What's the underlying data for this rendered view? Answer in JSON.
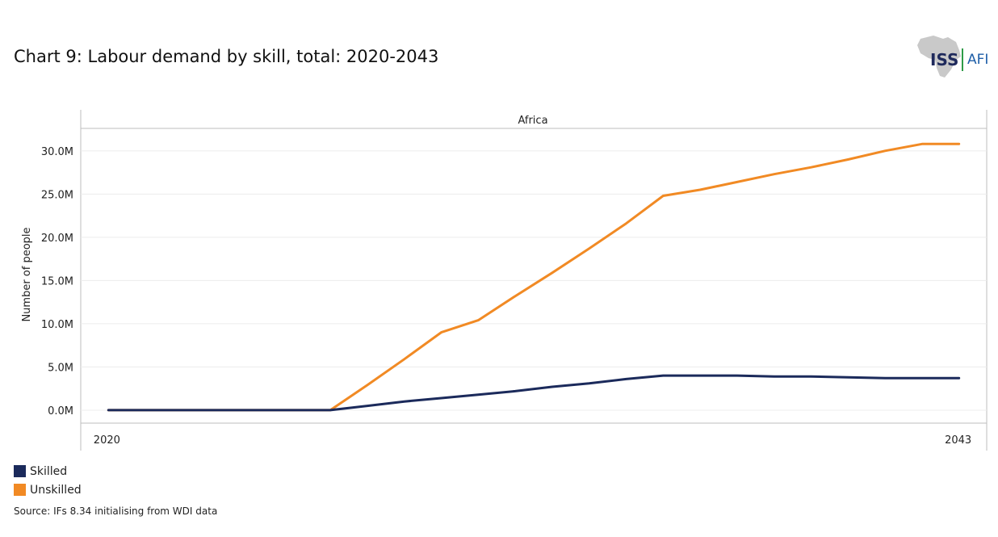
{
  "header": {
    "title": "Chart 9: Labour demand by skill, total: 2020-2043",
    "logo_iss": "ISS",
    "logo_afi": "AFI"
  },
  "chart_data": {
    "type": "line",
    "panel_title": "Africa",
    "ylabel": "Number of people",
    "xlabel": "",
    "x": [
      2020,
      2021,
      2022,
      2023,
      2024,
      2025,
      2026,
      2027,
      2028,
      2029,
      2030,
      2031,
      2032,
      2033,
      2034,
      2035,
      2036,
      2037,
      2038,
      2039,
      2040,
      2041,
      2042,
      2043
    ],
    "x_tick_labels": [
      "2020",
      "2043"
    ],
    "y_ticks": [
      0,
      5,
      10,
      15,
      20,
      25,
      30
    ],
    "y_tick_labels": [
      "0.0M",
      "5.0M",
      "10.0M",
      "15.0M",
      "20.0M",
      "25.0M",
      "30.0M"
    ],
    "ylim": [
      -1.5,
      32.6
    ],
    "xlim": [
      2019.25,
      2043.75
    ],
    "series": [
      {
        "name": "Skilled",
        "color": "#1b2a5b",
        "values": [
          0,
          0,
          0,
          0,
          0,
          0,
          0,
          0.5,
          1.0,
          1.4,
          1.8,
          2.2,
          2.7,
          3.1,
          3.6,
          4.0,
          4.0,
          4.0,
          3.9,
          3.9,
          3.8,
          3.7,
          3.7,
          3.7
        ]
      },
      {
        "name": "Unskilled",
        "color": "#f18a24",
        "values": [
          0,
          0,
          0,
          0,
          0,
          0,
          0,
          2.9,
          5.9,
          9.0,
          10.4,
          13.2,
          15.9,
          18.7,
          21.6,
          24.8,
          25.5,
          26.4,
          27.3,
          28.1,
          29.0,
          30.0,
          30.8,
          30.8
        ]
      }
    ]
  },
  "legend": {
    "items": [
      {
        "label": "Skilled",
        "color": "#1b2a5b"
      },
      {
        "label": "Unskilled",
        "color": "#f18a24"
      }
    ]
  },
  "footer": {
    "source": "Source: IFs 8.34 initialising from WDI data"
  }
}
